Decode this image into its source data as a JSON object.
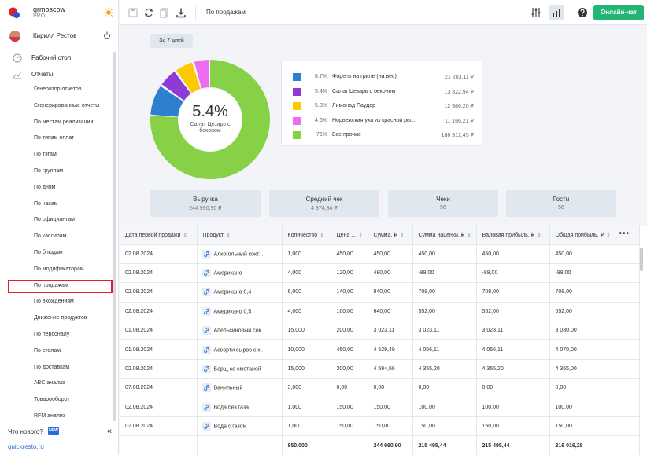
{
  "brand": {
    "name": "qrmoscow",
    "tier": "PRO"
  },
  "user": {
    "name": "Кирилл Рестов"
  },
  "nav": {
    "desk": "Рабочий стол",
    "reports": "Отчеты",
    "items": [
      "Генератор отчетов",
      "Сгенерированные отчеты",
      "По местам реализации",
      "По типам оплат",
      "По тэгам",
      "По группам",
      "По дням",
      "По часам",
      "По официантам",
      "По кассирам",
      "По блюдам",
      "По модификаторам",
      "По продажам",
      "По вхождениям",
      "Движение продуктов",
      "По персоналу",
      "По столам",
      "По доставкам",
      "ABC анализ",
      "Товарооборот",
      "RFM анализ"
    ],
    "active_index": 12
  },
  "whatsnew": {
    "label": "Что нового?",
    "badge": "NEW",
    "collapse": "«"
  },
  "footer_link": "quickresto.ru",
  "topbar": {
    "title": "По продажам",
    "chat": "Онлайн-чат"
  },
  "period": "За 7 дней",
  "donut": {
    "center_pct": "5.4%",
    "center_name": "Салат Цезарь с беконом",
    "slices": [
      {
        "pct": 8.7,
        "color": "#2f7fd1"
      },
      {
        "pct": 5.4,
        "color": "#8e3ad6"
      },
      {
        "pct": 5.3,
        "color": "#fcc800"
      },
      {
        "pct": 4.6,
        "color": "#ee6cf0"
      },
      {
        "pct": 76.0,
        "color": "#86d146"
      }
    ]
  },
  "legend": [
    {
      "pct": "8.7%",
      "name": "Форель на гриле (на вес)",
      "amount": "21 203,11 ₽",
      "color": "#2f7fd1"
    },
    {
      "pct": "5.4%",
      "name": "Салат Цезарь с беконом",
      "amount": "13 322,94 ₽",
      "color": "#8e3ad6"
    },
    {
      "pct": "5.3%",
      "name": "Лимонад Паудер",
      "amount": "12 986,20 ₽",
      "color": "#fcc800"
    },
    {
      "pct": "4.6%",
      "name": "Норвежская уха из красной ры...",
      "amount": "11 166,21 ₽",
      "color": "#ee6cf0"
    },
    {
      "pct": "76%",
      "name": "Все прочие",
      "amount": "186 312,45 ₽",
      "color": "#86d146"
    }
  ],
  "kpis": [
    {
      "title": "Выручка",
      "value": "244 990,90 ₽"
    },
    {
      "title": "Средний чек",
      "value": "4 374,84 ₽"
    },
    {
      "title": "Чеки",
      "value": "56"
    },
    {
      "title": "Гости",
      "value": "56"
    }
  ],
  "table": {
    "headers": [
      "Дата первой продажи",
      "Продукт",
      "Количество",
      "Цена ...",
      "Сумма, ₽",
      "Сумма наценки, ₽",
      "Валовая прибыль, ₽",
      "Общая прибыль, ₽"
    ],
    "rows": [
      [
        "02.08.2024",
        "Алкогольный кокт...",
        "1,000",
        "450,00",
        "450,00",
        "450,00",
        "450,00",
        "450,00"
      ],
      [
        "02.08.2024",
        "Американо",
        "4,000",
        "120,00",
        "480,00",
        "-88,00",
        "-88,00",
        "-88,00"
      ],
      [
        "02.08.2024",
        "Американо 0,4",
        "6,000",
        "140,00",
        "840,00",
        "708,00",
        "708,00",
        "708,00"
      ],
      [
        "02.08.2024",
        "Американо 0,5",
        "4,000",
        "160,00",
        "640,00",
        "552,00",
        "552,00",
        "552,00"
      ],
      [
        "01.08.2024",
        "Апельсиновый сок",
        "15,000",
        "200,00",
        "3 023,11",
        "3 023,11",
        "3 023,11",
        "3 030,00"
      ],
      [
        "01.08.2024",
        "Ассорти сыров с к...",
        "10,000",
        "450,00",
        "4 529,49",
        "4 056,11",
        "4 056,11",
        "4 070,00"
      ],
      [
        "02.08.2024",
        "Борщ со сметаной",
        "15,000",
        "300,00",
        "4 594,66",
        "4 355,20",
        "4 355,20",
        "4 365,00"
      ],
      [
        "07.08.2024",
        "Ванильный",
        "3,000",
        "0,00",
        "0,00",
        "0,00",
        "0,00",
        "0,00"
      ],
      [
        "02.08.2024",
        "Вода без газа",
        "1,000",
        "150,00",
        "150,00",
        "100,00",
        "100,00",
        "100,00"
      ],
      [
        "02.08.2024",
        "Вода с газом",
        "1,000",
        "150,00",
        "150,00",
        "150,00",
        "150,00",
        "150,00"
      ]
    ],
    "totals": [
      "",
      "",
      "850,000",
      "",
      "244 990,90",
      "215 495,44",
      "215 495,44",
      "216 016,28"
    ]
  }
}
